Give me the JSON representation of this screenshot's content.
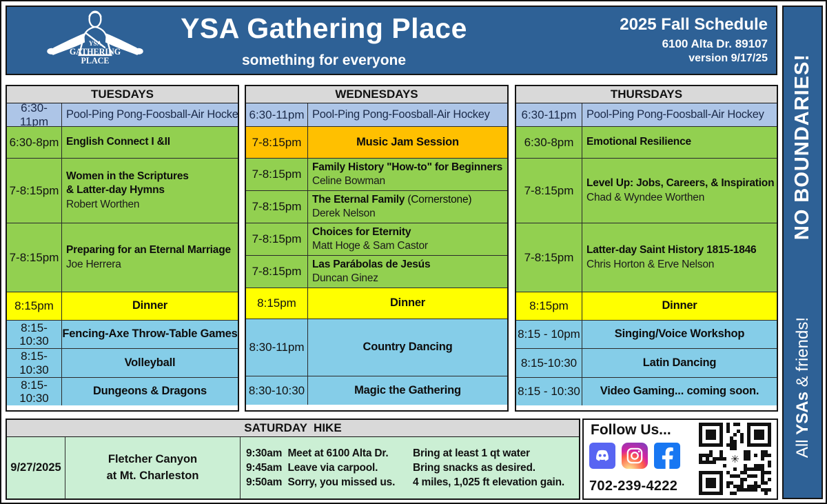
{
  "header": {
    "title": "YSA Gathering Place",
    "subtitle": "something for everyone",
    "schedule_title": "2025 Fall Schedule",
    "address": "6100 Alta Dr. 89107",
    "version": "version 9/17/25",
    "logo_line1": "YSA",
    "logo_line2": "GATHERING",
    "logo_line3": "PLACE"
  },
  "sidebar": {
    "top_text": "NO BOUNDARIES!",
    "bottom_pre": "All ",
    "bottom_bold": "YSAs",
    "bottom_post": " & friends!"
  },
  "columns": [
    {
      "day": "TUESDAYS",
      "rows": [
        {
          "time": "6:30-11pm",
          "title": "Pool-Ping Pong-Foosball-Air Hockey",
          "type": "pool"
        },
        {
          "time": "6:30-8pm",
          "title": "English Connect I &II",
          "type": "class"
        },
        {
          "time": "7-8:15pm",
          "title": "Women in the Scriptures",
          "title2": "& Latter-day Hymns",
          "presenter": "Robert Worthen",
          "type": "class"
        },
        {
          "time": "7-8:15pm",
          "title": "Preparing for an Eternal Marriage",
          "presenter": "Joe Herrera",
          "type": "class"
        },
        {
          "time": "8:15pm",
          "title": "Dinner",
          "type": "dinner"
        },
        {
          "time": "8:15-10:30",
          "title": "Fencing-Axe Throw-Table Games",
          "type": "activity"
        },
        {
          "time": "8:15-10:30",
          "title": "Volleyball",
          "type": "activity"
        },
        {
          "time": "8:15-10:30",
          "title": "Dungeons & Dragons",
          "type": "activity"
        }
      ]
    },
    {
      "day": "WEDNESDAYS",
      "rows": [
        {
          "time": "6:30-11pm",
          "title": "Pool-Ping Pong-Foosball-Air Hockey",
          "type": "pool"
        },
        {
          "time": "7-8:15pm",
          "title": "Music Jam Session",
          "type": "music"
        },
        {
          "time": "7-8:15pm",
          "title": "Family History \"How-to\" for Beginners",
          "presenter": "Celine Bowman",
          "type": "class"
        },
        {
          "time": "7-8:15pm",
          "title": "The Eternal Family",
          "suffix": " (Cornerstone)",
          "presenter": "Derek Nelson",
          "type": "class"
        },
        {
          "time": "7-8:15pm",
          "title": "Choices for Eternity",
          "presenter": "Matt Hoge & Sam Castor",
          "type": "class"
        },
        {
          "time": "7-8:15pm",
          "title": "Las Parábolas de Jesús",
          "presenter": "Duncan Ginez",
          "type": "class"
        },
        {
          "time": "8:15pm",
          "title": "Dinner",
          "type": "dinner"
        },
        {
          "time": "8:30-11pm",
          "title": "Country Dancing",
          "type": "activity"
        },
        {
          "time": "8:30-10:30",
          "title": "Magic the Gathering",
          "type": "activity"
        }
      ]
    },
    {
      "day": "THURSDAYS",
      "rows": [
        {
          "time": "6:30-11pm",
          "title": "Pool-Ping Pong-Foosball-Air Hockey",
          "type": "pool"
        },
        {
          "time": "6:30-8pm",
          "title": "Emotional Resilience",
          "type": "class"
        },
        {
          "time": "7-8:15pm",
          "title": "Level Up: Jobs, Careers, & Inspiration",
          "presenter": "Chad & Wyndee Worthen",
          "type": "class"
        },
        {
          "time": "7-8:15pm",
          "title": "Latter-day Saint History 1815-1846",
          "presenter": "Chris Horton & Erve Nelson",
          "type": "class"
        },
        {
          "time": "8:15pm",
          "title": "Dinner",
          "type": "dinner"
        },
        {
          "time": "8:15 - 10pm",
          "title": "Singing/Voice  Workshop",
          "type": "activity"
        },
        {
          "time": "8:15-10:30",
          "title": "Latin Dancing",
          "type": "activity"
        },
        {
          "time": "8:15 - 10:30",
          "title": "Video Gaming...  coming soon.",
          "type": "activity"
        }
      ]
    }
  ],
  "saturday": {
    "header": "SATURDAY  HIKE",
    "date": "9/27/2025",
    "location_line1": "Fletcher Canyon",
    "location_line2": "at Mt. Charleston",
    "details": [
      {
        "left": "9:30am  Meet at 6100 Alta Dr.",
        "right": "Bring at least 1 qt water"
      },
      {
        "left": "9:45am  Leave via carpool.",
        "right": "Bring snacks as desired."
      },
      {
        "left": "9:50am  Sorry, you missed us.",
        "right": "4 miles, 1,025 ft elevation gain."
      }
    ]
  },
  "follow": {
    "heading": "Follow Us...",
    "phone": "702-239-4222",
    "icons": [
      "discord-icon",
      "instagram-icon",
      "facebook-icon"
    ]
  },
  "colors": {
    "header": "#2e6196",
    "gray": "#d9d9d9",
    "pool": "#adc5e7",
    "green": "#92d050",
    "orange": "#ffc000",
    "yellow": "#ffff00",
    "blue": "#85cde8",
    "mint": "#cbefd4",
    "discord": "#5865F2",
    "facebook": "#1877F2"
  }
}
